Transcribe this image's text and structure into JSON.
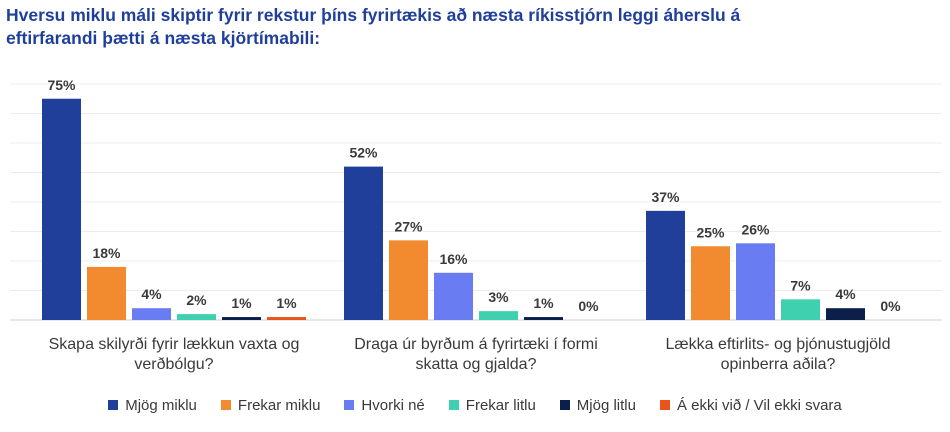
{
  "chart_data": {
    "type": "bar",
    "title": "Hversu miklu máli skiptir fyrir rekstur þíns fyrirtækis að næsta ríkisstjórn leggi áherslu á eftirfarandi þætti á næsta kjörtímabili:",
    "categories": [
      [
        "Skapa skilyrði fyrir lækkun vaxta og",
        "verðbólgu?"
      ],
      [
        "Draga úr byrðum á fyrirtæki í formi",
        "skatta og gjalda?"
      ],
      [
        "Lækka eftirlits- og þjónustugjöld",
        "opinberra aðila?"
      ]
    ],
    "series": [
      {
        "name": "Mjög miklu",
        "color": "#1f3f9b",
        "values": [
          75,
          52,
          37
        ]
      },
      {
        "name": "Frekar miklu",
        "color": "#f28a30",
        "values": [
          18,
          27,
          25
        ]
      },
      {
        "name": "Hvorki né",
        "color": "#6a7cf2",
        "values": [
          4,
          16,
          26
        ]
      },
      {
        "name": "Frekar litlu",
        "color": "#3fd0b0",
        "values": [
          2,
          3,
          7
        ]
      },
      {
        "name": "Mjög litlu",
        "color": "#0b1f4a",
        "values": [
          1,
          1,
          4
        ]
      },
      {
        "name": "Á ekki við / Vil ekki svara",
        "color": "#e8541a",
        "values": [
          1,
          0,
          0
        ]
      }
    ],
    "value_suffix": "%",
    "ylim": [
      0,
      85
    ],
    "grid": true,
    "legend_position": "bottom"
  }
}
